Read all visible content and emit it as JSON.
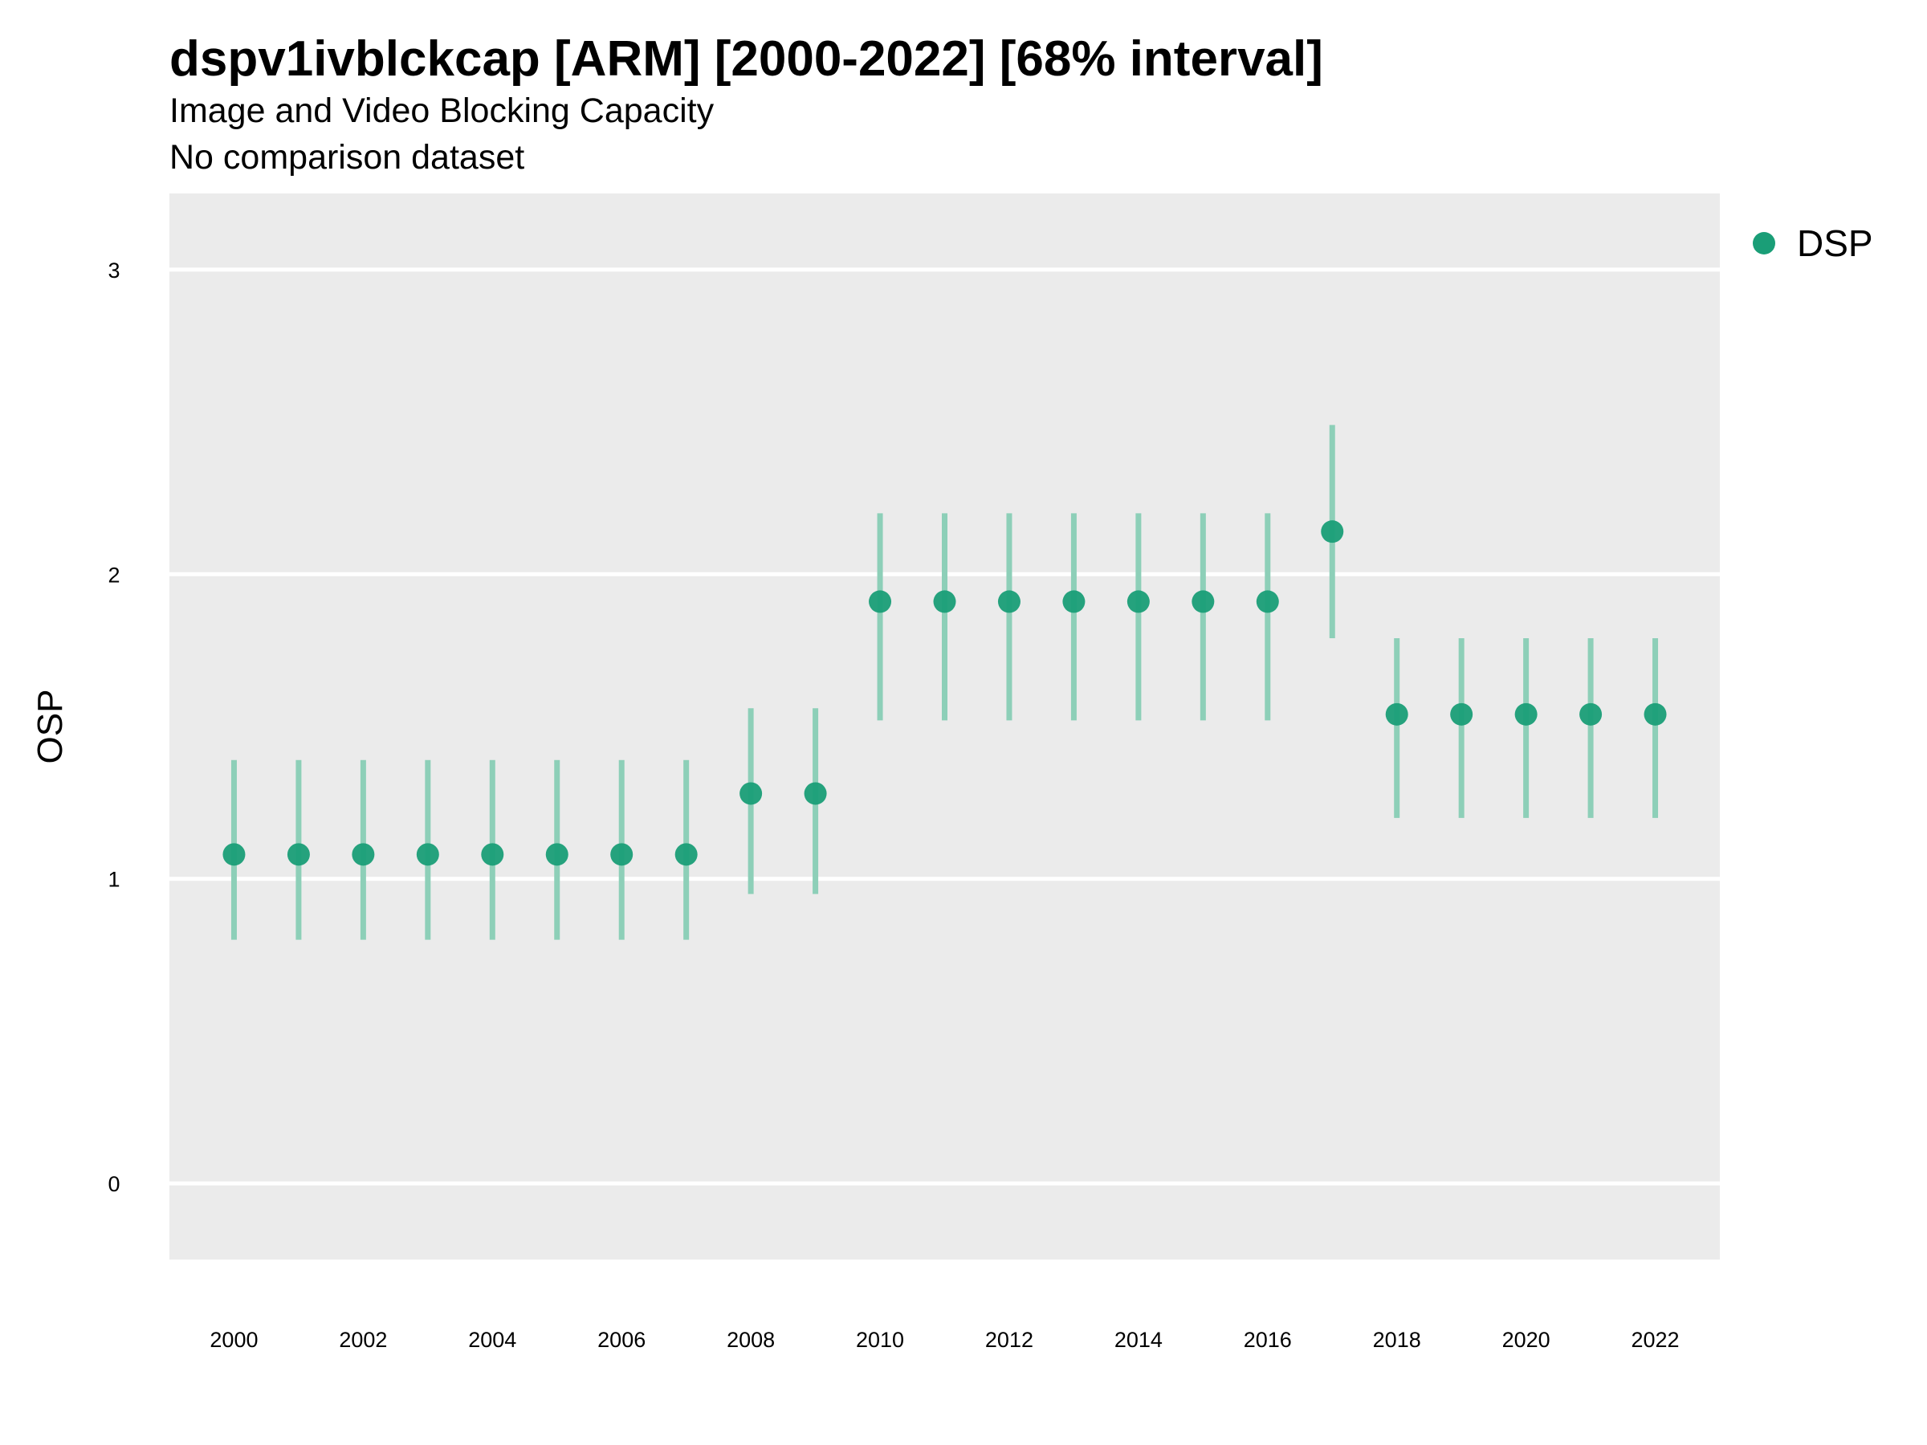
{
  "title": "dspv1ivblckcap [ARM] [2000-2022] [68% interval]",
  "subtitle": "Image and Video Blocking Capacity",
  "subtitle2": "No comparison dataset",
  "colors": {
    "point": "#1a9e77",
    "interval": "#8dcfb8",
    "panel": "#ebebeb",
    "grid": "#ffffff"
  },
  "chart_data": {
    "type": "scatter",
    "title": "dspv1ivblckcap [ARM] [2000-2022] [68% interval]",
    "xlabel": "",
    "ylabel": "OSP",
    "xlim": [
      1999,
      2023
    ],
    "ylim": [
      -0.25,
      3.25
    ],
    "x_ticks": [
      2000,
      2002,
      2004,
      2006,
      2008,
      2010,
      2012,
      2014,
      2016,
      2018,
      2020,
      2022
    ],
    "y_ticks": [
      0,
      1,
      2,
      3
    ],
    "grid": true,
    "legend_position": "top-right",
    "series": [
      {
        "name": "DSP",
        "points": [
          {
            "x": 2000,
            "y": 1.08,
            "lower": 0.8,
            "upper": 1.39
          },
          {
            "x": 2001,
            "y": 1.08,
            "lower": 0.8,
            "upper": 1.39
          },
          {
            "x": 2002,
            "y": 1.08,
            "lower": 0.8,
            "upper": 1.39
          },
          {
            "x": 2003,
            "y": 1.08,
            "lower": 0.8,
            "upper": 1.39
          },
          {
            "x": 2004,
            "y": 1.08,
            "lower": 0.8,
            "upper": 1.39
          },
          {
            "x": 2005,
            "y": 1.08,
            "lower": 0.8,
            "upper": 1.39
          },
          {
            "x": 2006,
            "y": 1.08,
            "lower": 0.8,
            "upper": 1.39
          },
          {
            "x": 2007,
            "y": 1.08,
            "lower": 0.8,
            "upper": 1.39
          },
          {
            "x": 2008,
            "y": 1.28,
            "lower": 0.95,
            "upper": 1.56
          },
          {
            "x": 2009,
            "y": 1.28,
            "lower": 0.95,
            "upper": 1.56
          },
          {
            "x": 2010,
            "y": 1.91,
            "lower": 1.52,
            "upper": 2.2
          },
          {
            "x": 2011,
            "y": 1.91,
            "lower": 1.52,
            "upper": 2.2
          },
          {
            "x": 2012,
            "y": 1.91,
            "lower": 1.52,
            "upper": 2.2
          },
          {
            "x": 2013,
            "y": 1.91,
            "lower": 1.52,
            "upper": 2.2
          },
          {
            "x": 2014,
            "y": 1.91,
            "lower": 1.52,
            "upper": 2.2
          },
          {
            "x": 2015,
            "y": 1.91,
            "lower": 1.52,
            "upper": 2.2
          },
          {
            "x": 2016,
            "y": 1.91,
            "lower": 1.52,
            "upper": 2.2
          },
          {
            "x": 2017,
            "y": 2.14,
            "lower": 1.79,
            "upper": 2.49
          },
          {
            "x": 2018,
            "y": 1.54,
            "lower": 1.2,
            "upper": 1.79
          },
          {
            "x": 2019,
            "y": 1.54,
            "lower": 1.2,
            "upper": 1.79
          },
          {
            "x": 2020,
            "y": 1.54,
            "lower": 1.2,
            "upper": 1.79
          },
          {
            "x": 2021,
            "y": 1.54,
            "lower": 1.2,
            "upper": 1.79
          },
          {
            "x": 2022,
            "y": 1.54,
            "lower": 1.2,
            "upper": 1.79
          }
        ]
      }
    ]
  }
}
